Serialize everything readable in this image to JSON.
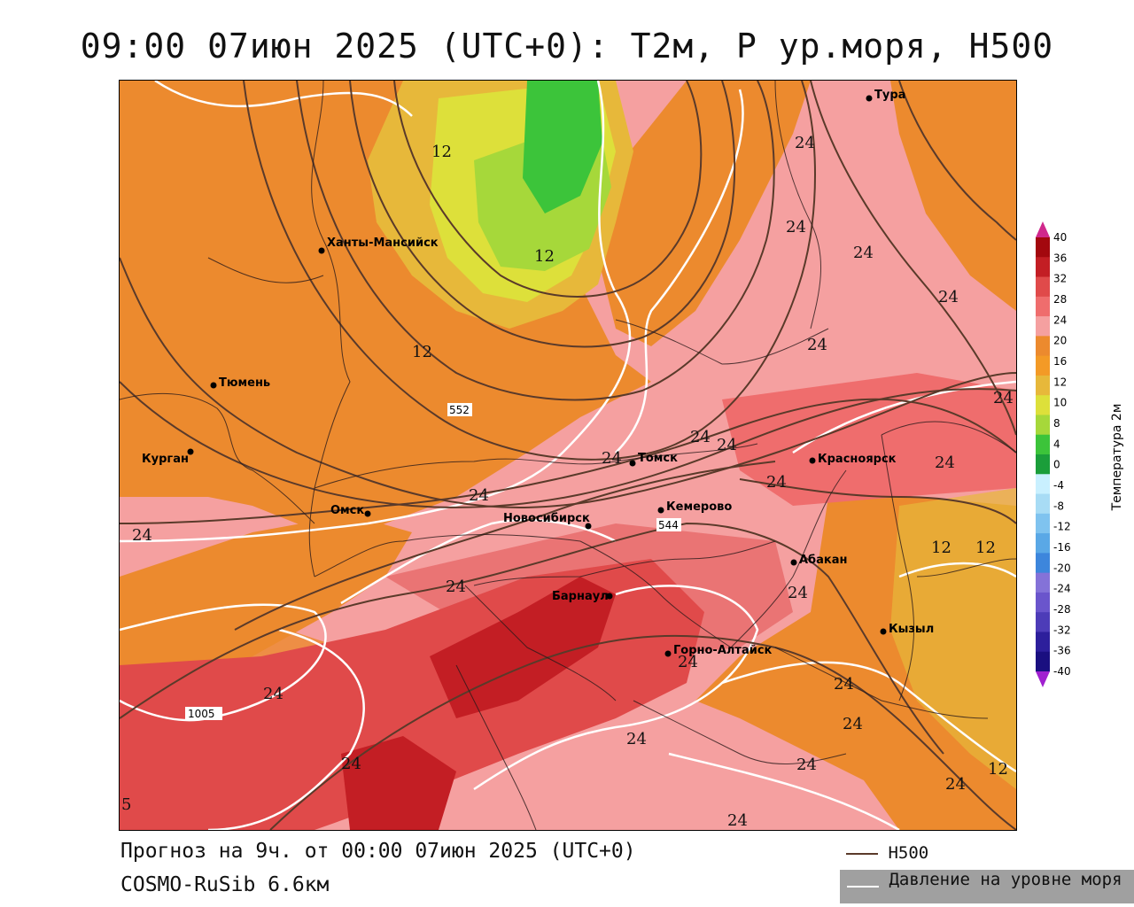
{
  "title": "09:00 07июн 2025 (UTC+0): T2м, P ур.моря, H500",
  "cities": [
    {
      "name": "Тура"
    },
    {
      "name": "Ханты-Мансийск"
    },
    {
      "name": "Тюмень"
    },
    {
      "name": "Курган"
    },
    {
      "name": "Омск"
    },
    {
      "name": "Новосибирск"
    },
    {
      "name": "Томск"
    },
    {
      "name": "Кемерово"
    },
    {
      "name": "Красноярск"
    },
    {
      "name": "Абакан"
    },
    {
      "name": "Барнаул"
    },
    {
      "name": "Горно-Алтайск"
    },
    {
      "name": "Кызыл"
    }
  ],
  "contour_labels": [
    "12",
    "24",
    "5"
  ],
  "isobar_boxes": [
    "552",
    "1005",
    "544"
  ],
  "colorbar": {
    "title": "Температура 2м",
    "ticks": [
      "40",
      "36",
      "32",
      "28",
      "24",
      "20",
      "16",
      "12",
      "10",
      "8",
      "4",
      "0",
      "-4",
      "-8",
      "-12",
      "-16",
      "-20",
      "-24",
      "-28",
      "-32",
      "-36",
      "-40"
    ],
    "colors": [
      "#a3080e",
      "#c31e24",
      "#e04a4a",
      "#ef6d6d",
      "#f5a0a0",
      "#ec8a2e",
      "#f39a26",
      "#e7b83a",
      "#dde03a",
      "#a6d83a",
      "#3cc43a",
      "#1b9e3a",
      "#c9f0ff",
      "#a8dcf5",
      "#7fc3ef",
      "#5aa8e6",
      "#3d86dc",
      "#8472d8",
      "#6a55cc",
      "#4d3cb8",
      "#2d1f9c",
      "#1a0f80"
    ]
  },
  "footer": {
    "line1": "Прогноз на 9ч. от 00:00 07июн 2025 (UTC+0)",
    "line2": "COSMO-RuSib 6.6км"
  },
  "legend": {
    "h500": "H500",
    "slp": "Давление на уровне моря"
  },
  "colors": {
    "h500_line": "#5a3a2a",
    "slp_line": "#ffffff"
  }
}
